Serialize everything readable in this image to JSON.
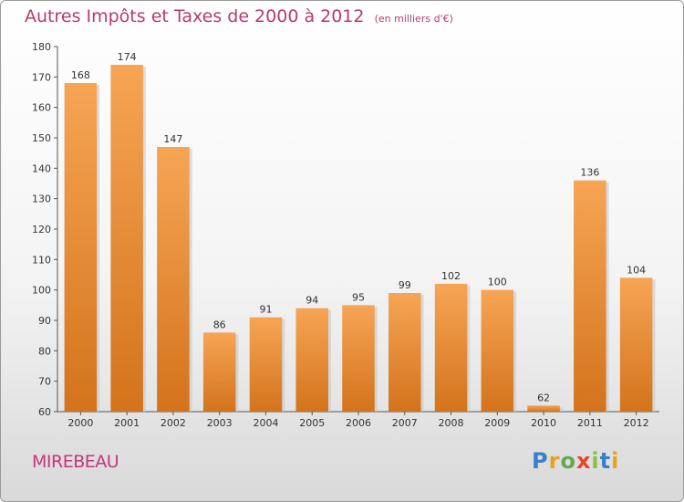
{
  "title": "Autres Impôts et Taxes de 2000 à 2012",
  "subtitle": "(en milliers d'€)",
  "commune": "MIREBEAU",
  "logo": {
    "letters": [
      "P",
      "r",
      "o",
      "x",
      "i",
      "t",
      "i"
    ],
    "colors": [
      "#3a7fc9",
      "#e8a21d",
      "#6aa84f",
      "#e8442a",
      "#8fbf3a",
      "#3a7fc9",
      "#e8a21d"
    ]
  },
  "colors": {
    "bar": "#f0912c",
    "title": "#b83a72"
  },
  "chart_data": {
    "type": "bar",
    "categories": [
      "2000",
      "2001",
      "2002",
      "2003",
      "2004",
      "2005",
      "2006",
      "2007",
      "2008",
      "2009",
      "2010",
      "2011",
      "2012"
    ],
    "values": [
      168,
      174,
      147,
      86,
      91,
      94,
      95,
      99,
      102,
      100,
      62,
      136,
      104
    ],
    "ylim": [
      60,
      180
    ],
    "yticks": [
      "60",
      "70",
      "80",
      "90",
      "100",
      "110",
      "120",
      "130",
      "140",
      "150",
      "160",
      "170",
      "180"
    ],
    "grid": false
  }
}
